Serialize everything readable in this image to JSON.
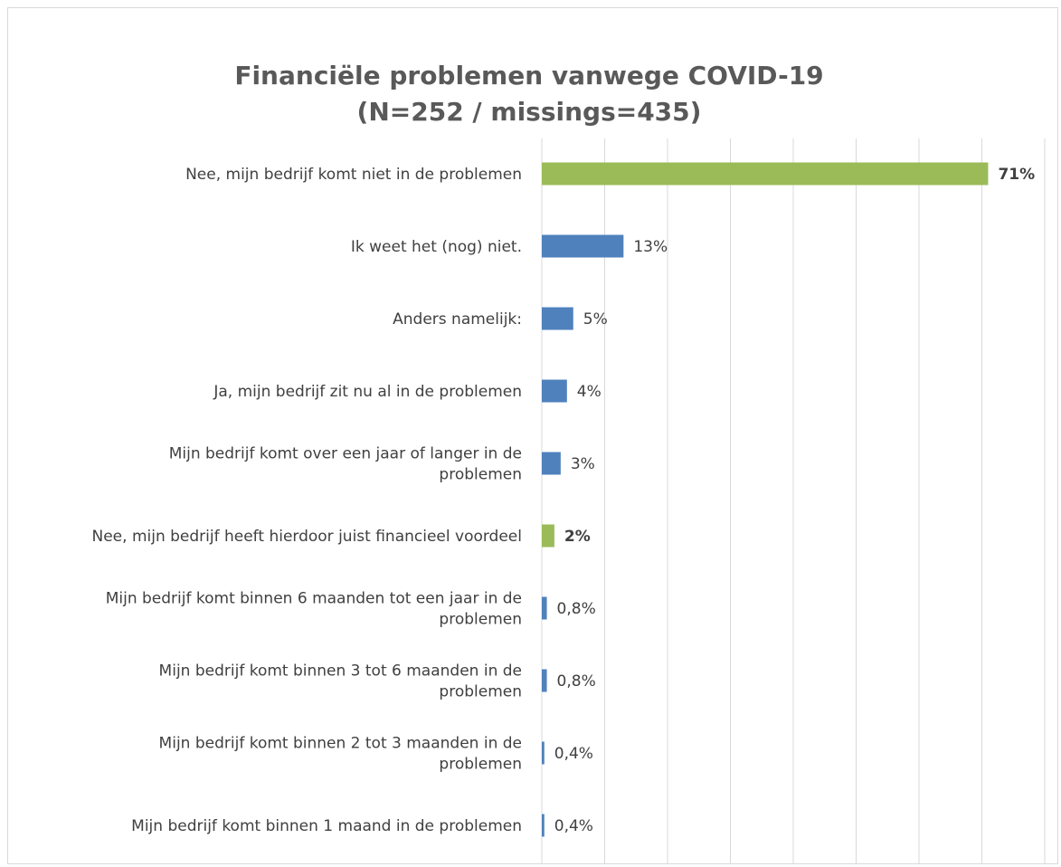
{
  "chart_data": {
    "type": "bar",
    "orientation": "horizontal",
    "title": [
      "Financiële problemen vanwege COVID-19",
      "(N=252 / missings=435)"
    ],
    "xlabel": "",
    "ylabel": "",
    "xlim": [
      0,
      80
    ],
    "grid": true,
    "legend": "none",
    "colors": {
      "default": "#4f81bd",
      "highlight": "#9bbb59",
      "gridline": "#d9d9d9",
      "frame": "#d9d9d9",
      "title": "#595959",
      "text": "#404040"
    },
    "categories": [
      [
        "Nee, mijn bedrijf komt niet in de problemen"
      ],
      [
        "Ik weet het (nog) niet."
      ],
      [
        "Anders namelijk:"
      ],
      [
        "Ja, mijn bedrijf zit nu al in de problemen"
      ],
      [
        "Mijn bedrijf komt over een jaar of langer in de",
        "problemen"
      ],
      [
        "Nee, mijn bedrijf heeft hierdoor juist financieel voordeel"
      ],
      [
        "Mijn bedrijf komt binnen 6 maanden tot een jaar in de",
        "problemen"
      ],
      [
        "Mijn bedrijf komt binnen 3 tot 6 maanden in de",
        "problemen"
      ],
      [
        "Mijn bedrijf komt binnen 2 tot 3 maanden in de",
        "problemen"
      ],
      [
        "Mijn bedrijf komt binnen 1 maand in de problemen"
      ]
    ],
    "values": [
      71,
      13,
      5,
      4,
      3,
      2,
      0.8,
      0.8,
      0.4,
      0.4
    ],
    "value_labels": [
      "71%",
      "13%",
      "5%",
      "4%",
      "3%",
      "2%",
      "0,8%",
      "0,8%",
      "0,4%",
      "0,4%"
    ],
    "highlighted": [
      true,
      false,
      false,
      false,
      false,
      true,
      false,
      false,
      false,
      false
    ]
  }
}
